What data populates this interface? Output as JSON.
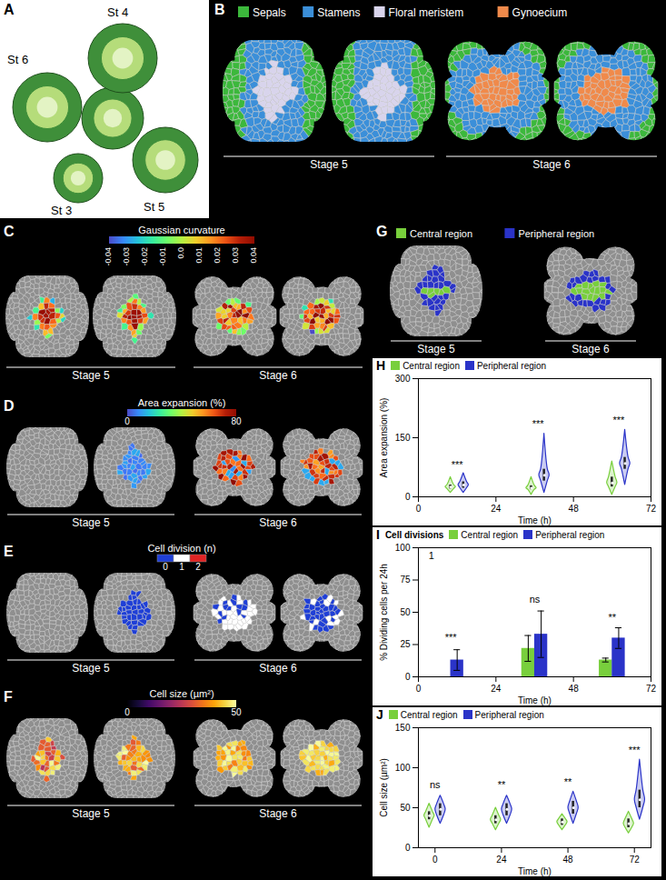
{
  "panels": [
    {
      "letter": "A",
      "labels": [
        "St 4",
        "St 6",
        "St 3",
        "St 5"
      ]
    },
    {
      "letter": "B",
      "legend": [
        {
          "name": "Sepals",
          "color": "#3cb83c"
        },
        {
          "name": "Stamens",
          "color": "#3b8fd9"
        },
        {
          "name": "Floral meristem",
          "color": "#d8d4ec"
        },
        {
          "name": "Gynoecium",
          "color": "#f08a4b"
        }
      ],
      "stage_labels": [
        "Stage 5",
        "Stage 6"
      ]
    },
    {
      "letter": "C",
      "colorbar": {
        "title": "Gaussian curvature",
        "range": [
          -0.04,
          0.04
        ],
        "ticks": [
          -0.04,
          -0.03,
          -0.02,
          -0.01,
          {
            "value": 0,
            "label": "0.0"
          },
          0.01,
          0.02,
          0.03,
          0.04
        ]
      },
      "stage_labels": [
        "Stage 5",
        "Stage 6"
      ]
    },
    {
      "letter": "D",
      "colorbar": {
        "title": "Area expansion (%)",
        "range": [
          0,
          80
        ],
        "ticks": [
          0,
          80
        ]
      },
      "stage_labels": [
        "Stage 5",
        "Stage 6"
      ]
    },
    {
      "letter": "E",
      "colorbar": {
        "title": "Cell division (n)",
        "categories": [
          0,
          1,
          2
        ],
        "colors": [
          "#1f3fd6",
          "#ffffff",
          "#e02424"
        ]
      },
      "stage_labels": [
        "Stage 5",
        "Stage 6"
      ]
    },
    {
      "letter": "F",
      "colorbar": {
        "title": "Cell size (µm²)",
        "range": [
          0,
          50
        ],
        "ticks": [
          0,
          50
        ]
      },
      "stage_labels": [
        "Stage 5",
        "Stage 6"
      ]
    },
    {
      "letter": "G",
      "legend": [
        {
          "name": "Central region",
          "color": "#78cf3c"
        },
        {
          "name": "Peripheral region",
          "color": "#2a33c8"
        }
      ],
      "stage_labels": [
        "Stage 5",
        "Stage 6"
      ]
    }
  ],
  "chart_data": [
    {
      "letter": "H",
      "type": "violin",
      "x_label": "Time (h)",
      "y_label": "Area expansion (%)",
      "xlim": [
        0,
        72
      ],
      "xticks": [
        0,
        24,
        48,
        72
      ],
      "ylim": [
        0,
        300
      ],
      "yticks": [
        0,
        150,
        300
      ],
      "legend": "top-left",
      "series": [
        {
          "name": "Central region",
          "color": "#78cf3c",
          "x": [
            10,
            35,
            60
          ],
          "min": [
            10,
            5,
            5
          ],
          "q1": [
            20,
            18,
            25
          ],
          "median": [
            25,
            22,
            35
          ],
          "q3": [
            30,
            28,
            50
          ],
          "max": [
            50,
            50,
            90
          ]
        },
        {
          "name": "Peripheral region",
          "color": "#2a33c8",
          "x": [
            14,
            39,
            64
          ],
          "min": [
            10,
            10,
            30
          ],
          "q1": [
            22,
            40,
            70
          ],
          "median": [
            30,
            55,
            85
          ],
          "q3": [
            38,
            70,
            100
          ],
          "max": [
            60,
            160,
            170
          ]
        }
      ],
      "annotations": [
        {
          "text": "***",
          "x": 12,
          "y": 80
        },
        {
          "text": "***",
          "x": 37,
          "y": 185
        },
        {
          "text": "***",
          "x": 62,
          "y": 195
        }
      ]
    },
    {
      "letter": "I",
      "type": "bar",
      "title": "Cell divisions",
      "x_label": "Time (h)",
      "y_label": "% Dividing cells per 24h",
      "xlim": [
        0,
        72
      ],
      "xticks": [
        0,
        24,
        48,
        72
      ],
      "ylim": [
        0,
        100
      ],
      "yticks": [
        0,
        25,
        50,
        75,
        100
      ],
      "legend": "top-left",
      "series": [
        {
          "name": "Central region",
          "color": "#78cf3c",
          "x": [
            8,
            34,
            58
          ],
          "values": [
            0,
            22,
            13
          ],
          "errors": [
            0,
            10,
            1.5
          ]
        },
        {
          "name": "Peripheral region",
          "color": "#2a33c8",
          "x": [
            12,
            38,
            62
          ],
          "values": [
            13,
            33,
            30
          ],
          "errors": [
            8,
            18,
            8
          ]
        }
      ],
      "annotations": [
        {
          "text": "1",
          "x": 4,
          "y": 94
        },
        {
          "text": "***",
          "x": 10,
          "y": 30
        },
        {
          "text": "ns",
          "x": 36,
          "y": 60
        },
        {
          "text": "**",
          "x": 60,
          "y": 46
        }
      ]
    },
    {
      "letter": "J",
      "type": "violin",
      "x_label": "Time (h)",
      "y_label": "Cell size (µm²)",
      "xlim": [
        -6,
        78
      ],
      "xticks": [
        0,
        24,
        48,
        72
      ],
      "ylim": [
        0,
        150
      ],
      "yticks": [
        0,
        50,
        100,
        150
      ],
      "legend": "top-left",
      "series": [
        {
          "name": "Central region",
          "color": "#78cf3c",
          "x": [
            -2,
            22,
            46,
            70
          ],
          "min": [
            25,
            22,
            22,
            18
          ],
          "q1": [
            35,
            30,
            28,
            25
          ],
          "median": [
            40,
            35,
            32,
            30
          ],
          "q3": [
            45,
            40,
            36,
            36
          ],
          "max": [
            55,
            50,
            42,
            45
          ]
        },
        {
          "name": "Peripheral region",
          "color": "#2a33c8",
          "x": [
            2,
            26,
            50,
            74
          ],
          "min": [
            30,
            30,
            30,
            35
          ],
          "q1": [
            40,
            40,
            42,
            50
          ],
          "median": [
            48,
            48,
            50,
            60
          ],
          "q3": [
            55,
            55,
            58,
            72
          ],
          "max": [
            65,
            65,
            70,
            110
          ]
        }
      ],
      "annotations": [
        {
          "text": "ns",
          "x": 0,
          "y": 78
        },
        {
          "text": "**",
          "x": 24,
          "y": 78
        },
        {
          "text": "**",
          "x": 48,
          "y": 82
        },
        {
          "text": "***",
          "x": 72,
          "y": 122
        }
      ]
    }
  ]
}
